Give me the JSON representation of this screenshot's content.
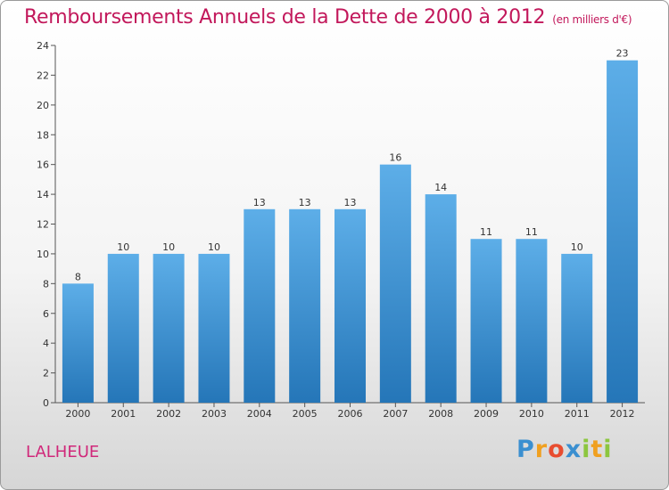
{
  "header": {
    "title": "Remboursements Annuels de la Dette de 2000 à 2012",
    "unit": "(en milliers d'€)"
  },
  "footer": {
    "commune": "LALHEUE",
    "logo_letters": [
      "P",
      "r",
      "o",
      "x",
      "i",
      "t",
      "i"
    ]
  },
  "colors": {
    "title": "#c2185b",
    "bar_top": "#5daee8",
    "bar_bottom": "#2576b8"
  },
  "chart_data": {
    "type": "bar",
    "title": "Remboursements Annuels de la Dette de 2000 à 2012",
    "categories": [
      "2000",
      "2001",
      "2002",
      "2003",
      "2004",
      "2005",
      "2006",
      "2007",
      "2008",
      "2009",
      "2010",
      "2011",
      "2012"
    ],
    "values": [
      8,
      10,
      10,
      10,
      13,
      13,
      13,
      16,
      14,
      11,
      11,
      10,
      23
    ],
    "ylim": [
      0,
      24
    ],
    "yticks": [
      0,
      2,
      4,
      6,
      8,
      10,
      12,
      14,
      16,
      18,
      20,
      22,
      24
    ],
    "xlabel": "",
    "ylabel": "",
    "grid": false,
    "legend": "none"
  }
}
